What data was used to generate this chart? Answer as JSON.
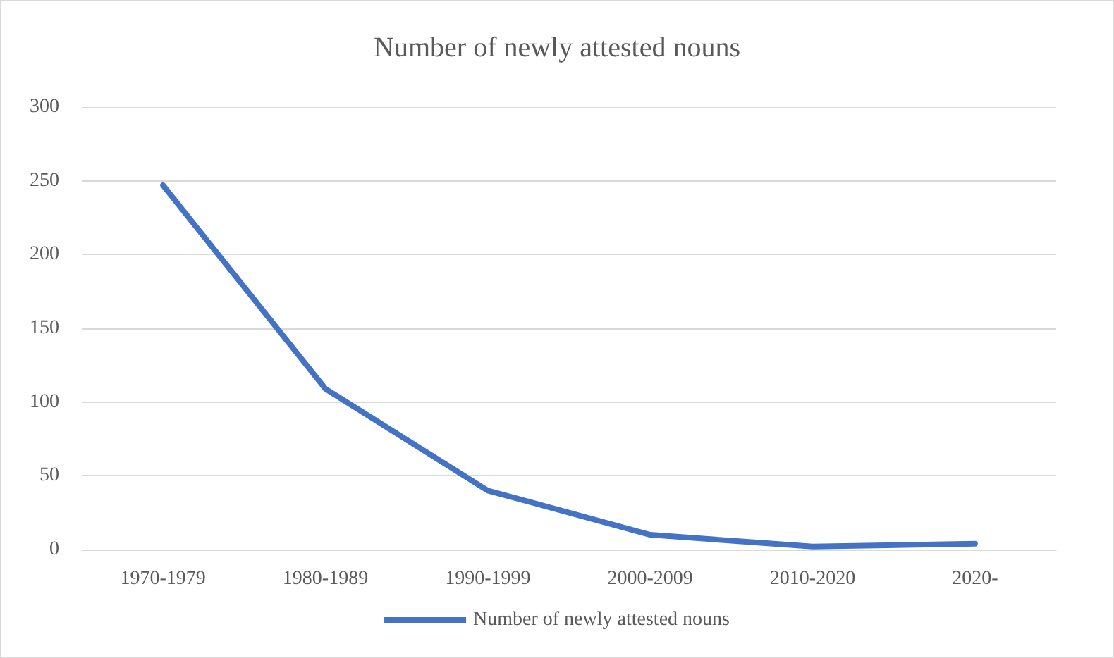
{
  "chart_data": {
    "type": "line",
    "title": "Number of newly attested nouns",
    "categories": [
      "1970-1979",
      "1980-1989",
      "1990-1999",
      "2000-2009",
      "2010-2020",
      "2020-"
    ],
    "series": [
      {
        "name": "Number of newly attested nouns",
        "color": "#4472c4",
        "values": [
          247,
          109,
          40,
          10,
          2,
          4
        ]
      }
    ],
    "ylim": [
      0,
      300
    ],
    "yticks": [
      0,
      50,
      100,
      150,
      200,
      250,
      300
    ],
    "grid": "y",
    "legend": "bottom",
    "marker": "none",
    "line_style": "solid"
  }
}
